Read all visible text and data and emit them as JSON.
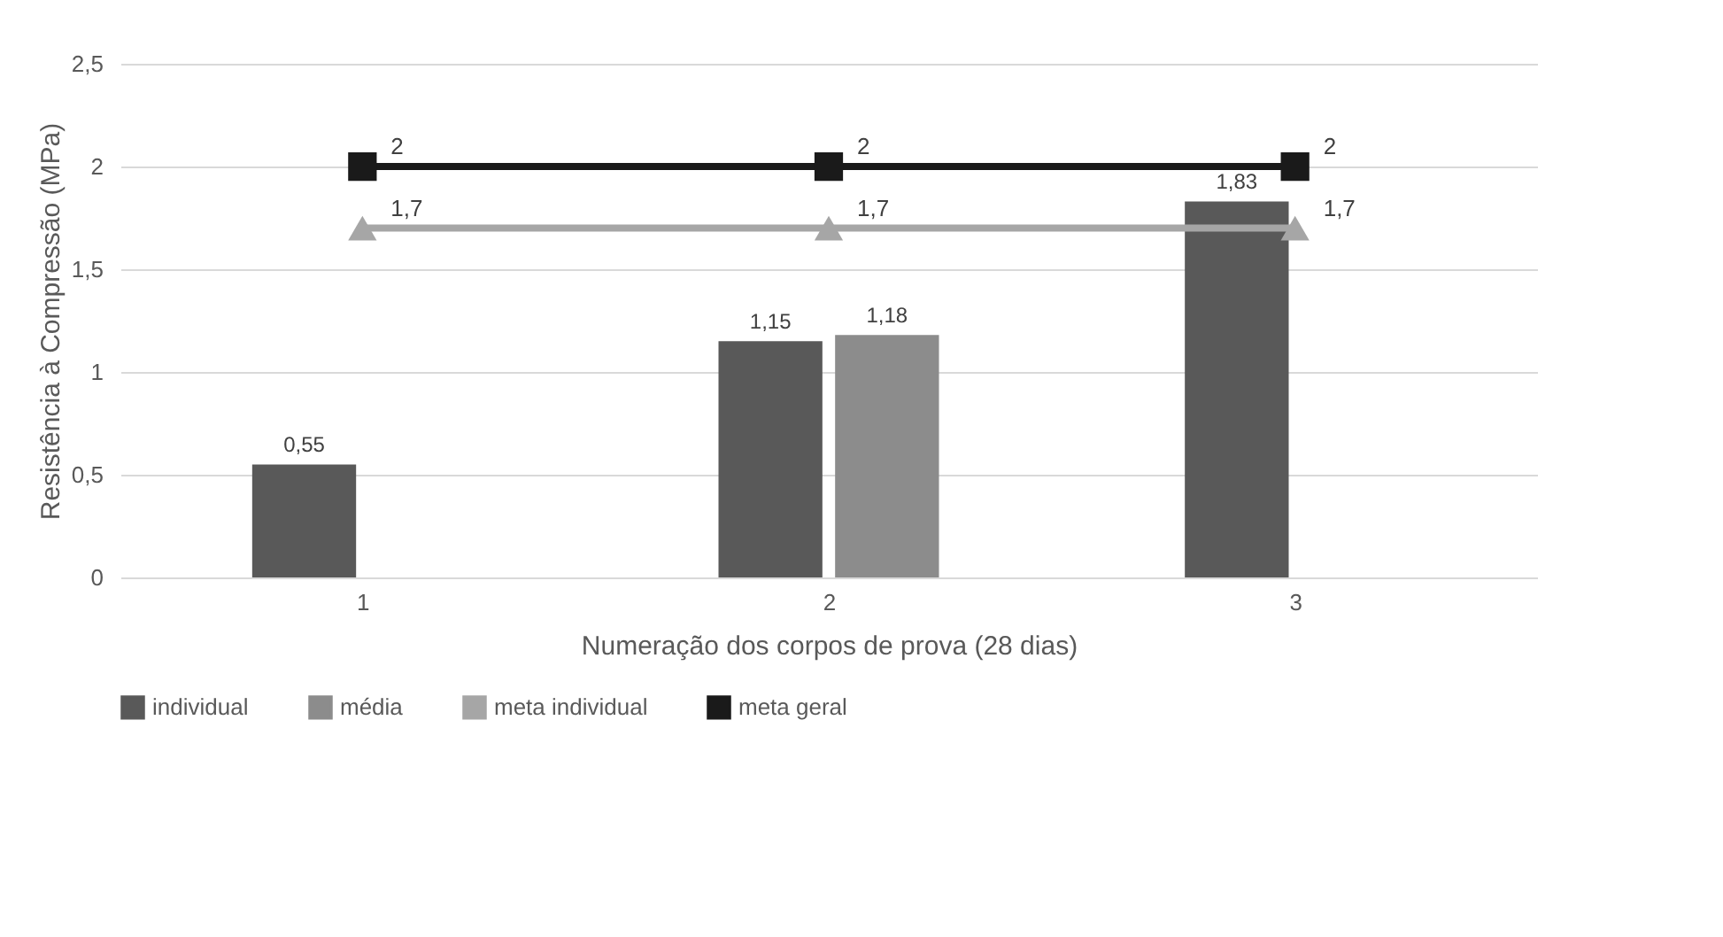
{
  "chart_data": {
    "type": "bar",
    "xlabel": "Numeração dos corpos de prova (28 dias)",
    "ylabel": "Resistência à Compressão (MPa)",
    "categories": [
      "1",
      "2",
      "3"
    ],
    "series": [
      {
        "name": "individual",
        "color": "#595959",
        "values": [
          0.55,
          1.15,
          1.83
        ],
        "value_labels": [
          "0,55",
          "1,15",
          "1,83"
        ]
      },
      {
        "name": "média",
        "color": "#8c8c8c",
        "values": [
          null,
          1.18,
          null
        ],
        "value_labels": [
          null,
          "1,18",
          null
        ]
      },
      {
        "name": "meta individual",
        "type": "line",
        "marker": "triangle",
        "color": "#a6a6a6",
        "values": [
          1.7,
          1.7,
          1.7
        ],
        "value_labels": [
          "1,7",
          "1,7",
          "1,7"
        ]
      },
      {
        "name": "meta geral",
        "type": "line",
        "marker": "square",
        "color": "#1a1a1a",
        "values": [
          2,
          2,
          2
        ],
        "value_labels": [
          "2",
          "2",
          "2"
        ]
      }
    ],
    "ylim": [
      0,
      2.5
    ],
    "yticks": [
      0,
      {
        "value": 0.5,
        "label": "0,5"
      },
      1,
      {
        "value": 1.5,
        "label": "1,5"
      },
      2,
      {
        "value": 2.5,
        "label": "2,5"
      }
    ],
    "grid": "y",
    "legend": "bottom"
  }
}
